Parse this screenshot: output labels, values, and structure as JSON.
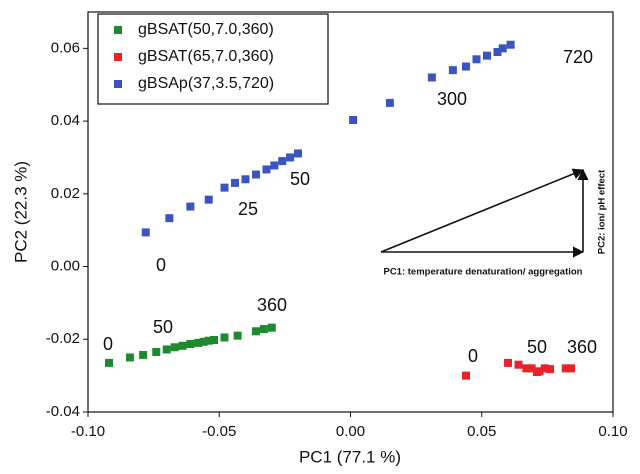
{
  "chart_data": {
    "type": "scatter",
    "x_label": "PC1 (77.1 %)",
    "y_label": "PC2 (22.3 %)",
    "xlim": [
      -0.1,
      0.1
    ],
    "ylim": [
      -0.04,
      0.07
    ],
    "xticks": [
      {
        "value": -0.1,
        "label": "-0.10"
      },
      {
        "value": -0.05,
        "label": "-0.05"
      },
      {
        "value": 0,
        "label": "0.00"
      },
      {
        "value": 0.05,
        "label": "0.05"
      },
      {
        "value": 0.1,
        "label": "0.10"
      }
    ],
    "yticks": [
      {
        "value": -0.04,
        "label": "-0.04"
      },
      {
        "value": -0.02,
        "label": "-0.02"
      },
      {
        "value": 0,
        "label": "0.00"
      },
      {
        "value": 0.02,
        "label": "0.02"
      },
      {
        "value": 0.04,
        "label": "0.04"
      },
      {
        "value": 0.06,
        "label": "0.06"
      }
    ],
    "legend": "upper left",
    "series": [
      {
        "name": "gBSAT(50,7.0,360)",
        "color": "#1e8a2e",
        "x": [
          -0.092,
          -0.084,
          -0.079,
          -0.074,
          -0.07,
          -0.067,
          -0.064,
          -0.061,
          -0.058,
          -0.056,
          -0.054,
          -0.052,
          -0.048,
          -0.043,
          -0.036,
          -0.033,
          -0.03
        ],
        "values": [
          -0.0265,
          -0.025,
          -0.0243,
          -0.0235,
          -0.0228,
          -0.0222,
          -0.0218,
          -0.0213,
          -0.021,
          -0.0207,
          -0.0204,
          -0.0202,
          -0.0195,
          -0.019,
          -0.0178,
          -0.0172,
          -0.0168
        ]
      },
      {
        "name": "gBSAT(65,7.0,360)",
        "color": "#e8232a",
        "x": [
          0.044,
          0.06,
          0.064,
          0.067,
          0.069,
          0.071,
          0.072,
          0.074,
          0.076,
          0.082,
          0.084
        ],
        "values": [
          -0.03,
          -0.0265,
          -0.027,
          -0.028,
          -0.028,
          -0.029,
          -0.0288,
          -0.028,
          -0.0282,
          -0.028,
          -0.028
        ]
      },
      {
        "name": "gBSAp(37,3.5,720)",
        "color": "#3a55c0",
        "x": [
          -0.078,
          -0.069,
          -0.061,
          -0.054,
          -0.048,
          -0.044,
          -0.04,
          -0.036,
          -0.032,
          -0.029,
          -0.026,
          -0.023,
          -0.02,
          0.001,
          0.015,
          0.031,
          0.039,
          0.044,
          0.048,
          0.052,
          0.056,
          0.058,
          0.061
        ],
        "values": [
          0.0094,
          0.0133,
          0.0165,
          0.0184,
          0.0217,
          0.023,
          0.024,
          0.0253,
          0.0267,
          0.0278,
          0.029,
          0.03,
          0.0311,
          0.0403,
          0.045,
          0.052,
          0.054,
          0.055,
          0.057,
          0.058,
          0.059,
          0.06,
          0.061
        ]
      }
    ],
    "annotations": [
      "0",
      "50",
      "360",
      "0",
      "50",
      "360",
      "0",
      "25",
      "50",
      "300",
      "720"
    ],
    "arrow_labels": [
      "PC1: temperature denaturation/ aggregation",
      "PC2: ion/ pH effect"
    ]
  }
}
